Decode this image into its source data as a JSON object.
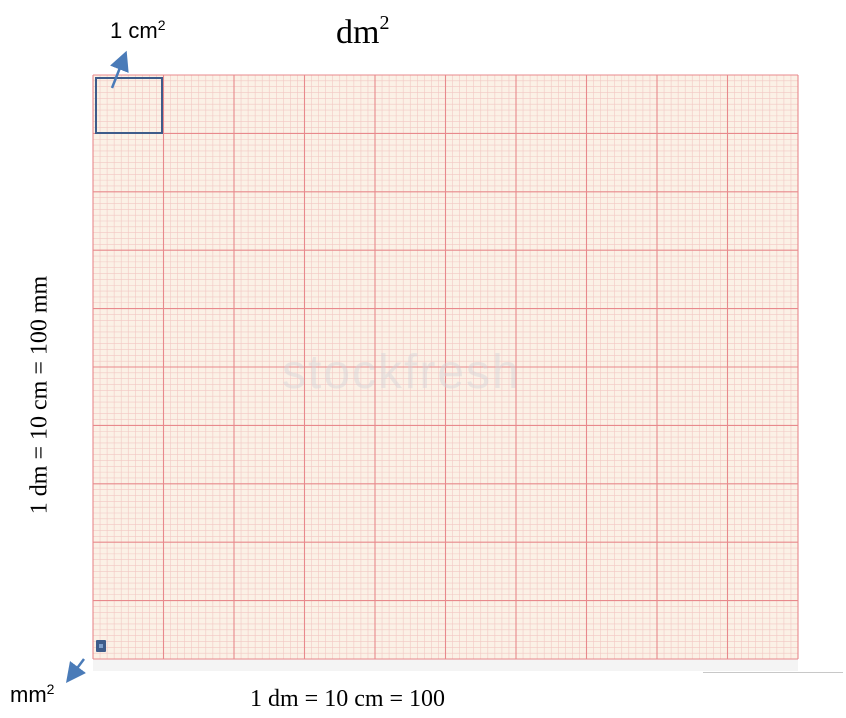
{
  "diagram": {
    "title_unit": "dm",
    "title_exp": "2",
    "small_square_label": "1 cm",
    "small_square_exp": "2",
    "tiny_square_label": "mm",
    "tiny_square_exp": "2",
    "bottom_dimension": "1 dm = 10 cm = 100",
    "side_dimension": "1 dm = 10 cm = 100 mm",
    "watermark": "stockfresh"
  },
  "colors": {
    "paper": "#fbf1e6",
    "major_line": "#e8898c",
    "minor_line": "#f2c7c3",
    "highlight": "#3e5c8a",
    "arrow": "#4a7bb8"
  }
}
